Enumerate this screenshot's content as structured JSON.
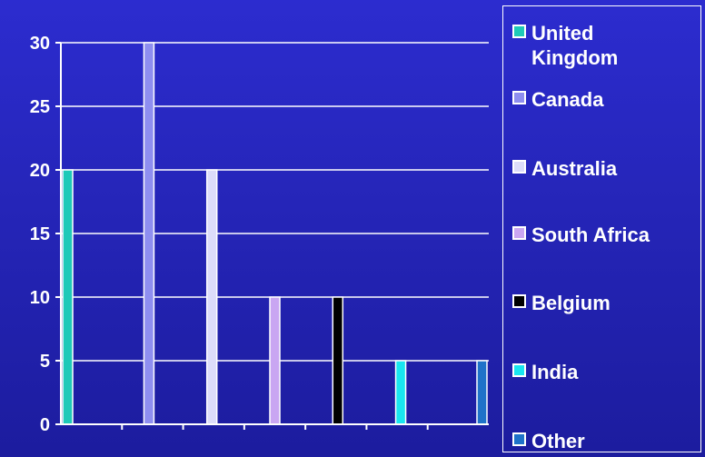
{
  "chart_data": {
    "type": "bar",
    "categories": [
      "United Kingdom",
      "Canada",
      "Australia",
      "South Africa",
      "Belgium",
      "India",
      "Other"
    ],
    "values": [
      20,
      30,
      20,
      10,
      10,
      5,
      5
    ],
    "colors": [
      "#1fc9b8",
      "#8e8ef0",
      "#dcdcfa",
      "#c9a6f2",
      "#000000",
      "#19e6f0",
      "#1f72c9"
    ],
    "title": "",
    "xlabel": "",
    "ylabel": "",
    "ylim": [
      0,
      30
    ],
    "yticks": [
      "0",
      "5",
      "10",
      "15",
      "20",
      "25",
      "30"
    ],
    "grid": true,
    "legend_position": "right"
  },
  "legend": {
    "items": [
      {
        "label": "United\nKingdom",
        "color": "#1fc9b8"
      },
      {
        "label": "Canada",
        "color": "#8e8ef0"
      },
      {
        "label": "Australia",
        "color": "#dcdcfa"
      },
      {
        "label": "South Africa",
        "color": "#c9a6f2"
      },
      {
        "label": "Belgium",
        "color": "#000000"
      },
      {
        "label": "India",
        "color": "#19e6f0"
      },
      {
        "label": "Other",
        "color": "#1f72c9"
      }
    ]
  }
}
